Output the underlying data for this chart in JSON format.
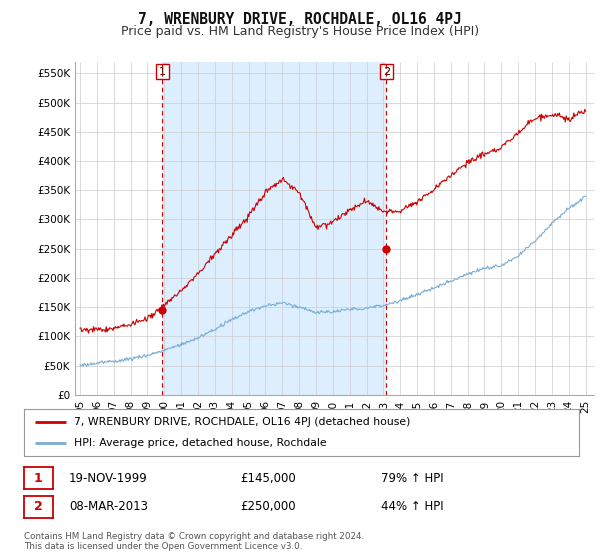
{
  "title": "7, WRENBURY DRIVE, ROCHDALE, OL16 4PJ",
  "subtitle": "Price paid vs. HM Land Registry's House Price Index (HPI)",
  "ylabel_ticks": [
    "£0",
    "£50K",
    "£100K",
    "£150K",
    "£200K",
    "£250K",
    "£300K",
    "£350K",
    "£400K",
    "£450K",
    "£500K",
    "£550K"
  ],
  "ytick_values": [
    0,
    50000,
    100000,
    150000,
    200000,
    250000,
    300000,
    350000,
    400000,
    450000,
    500000,
    550000
  ],
  "ylim": [
    0,
    570000
  ],
  "xlim_start": 1994.7,
  "xlim_end": 2025.5,
  "sale1_x": 1999.89,
  "sale1_y": 145000,
  "sale1_label": "1",
  "sale2_x": 2013.18,
  "sale2_y": 250000,
  "sale2_label": "2",
  "vline1_x": 1999.89,
  "vline2_x": 2013.18,
  "red_line_color": "#cc0000",
  "blue_line_color": "#7aadd4",
  "vline_color": "#cc0000",
  "grid_color": "#cccccc",
  "bg_color": "#ffffff",
  "shade_color": "#ddeeff",
  "legend_label_red": "7, WRENBURY DRIVE, ROCHDALE, OL16 4PJ (detached house)",
  "legend_label_blue": "HPI: Average price, detached house, Rochdale",
  "table_row1": [
    "1",
    "19-NOV-1999",
    "£145,000",
    "79% ↑ HPI"
  ],
  "table_row2": [
    "2",
    "08-MAR-2013",
    "£250,000",
    "44% ↑ HPI"
  ],
  "footnote": "Contains HM Land Registry data © Crown copyright and database right 2024.\nThis data is licensed under the Open Government Licence v3.0.",
  "title_fontsize": 10.5,
  "subtitle_fontsize": 9,
  "tick_fontsize": 7.5,
  "xtick_years": [
    1995,
    1996,
    1997,
    1998,
    1999,
    2000,
    2001,
    2002,
    2003,
    2004,
    2005,
    2006,
    2007,
    2008,
    2009,
    2010,
    2011,
    2012,
    2013,
    2014,
    2015,
    2016,
    2017,
    2018,
    2019,
    2020,
    2021,
    2022,
    2023,
    2024,
    2025
  ]
}
